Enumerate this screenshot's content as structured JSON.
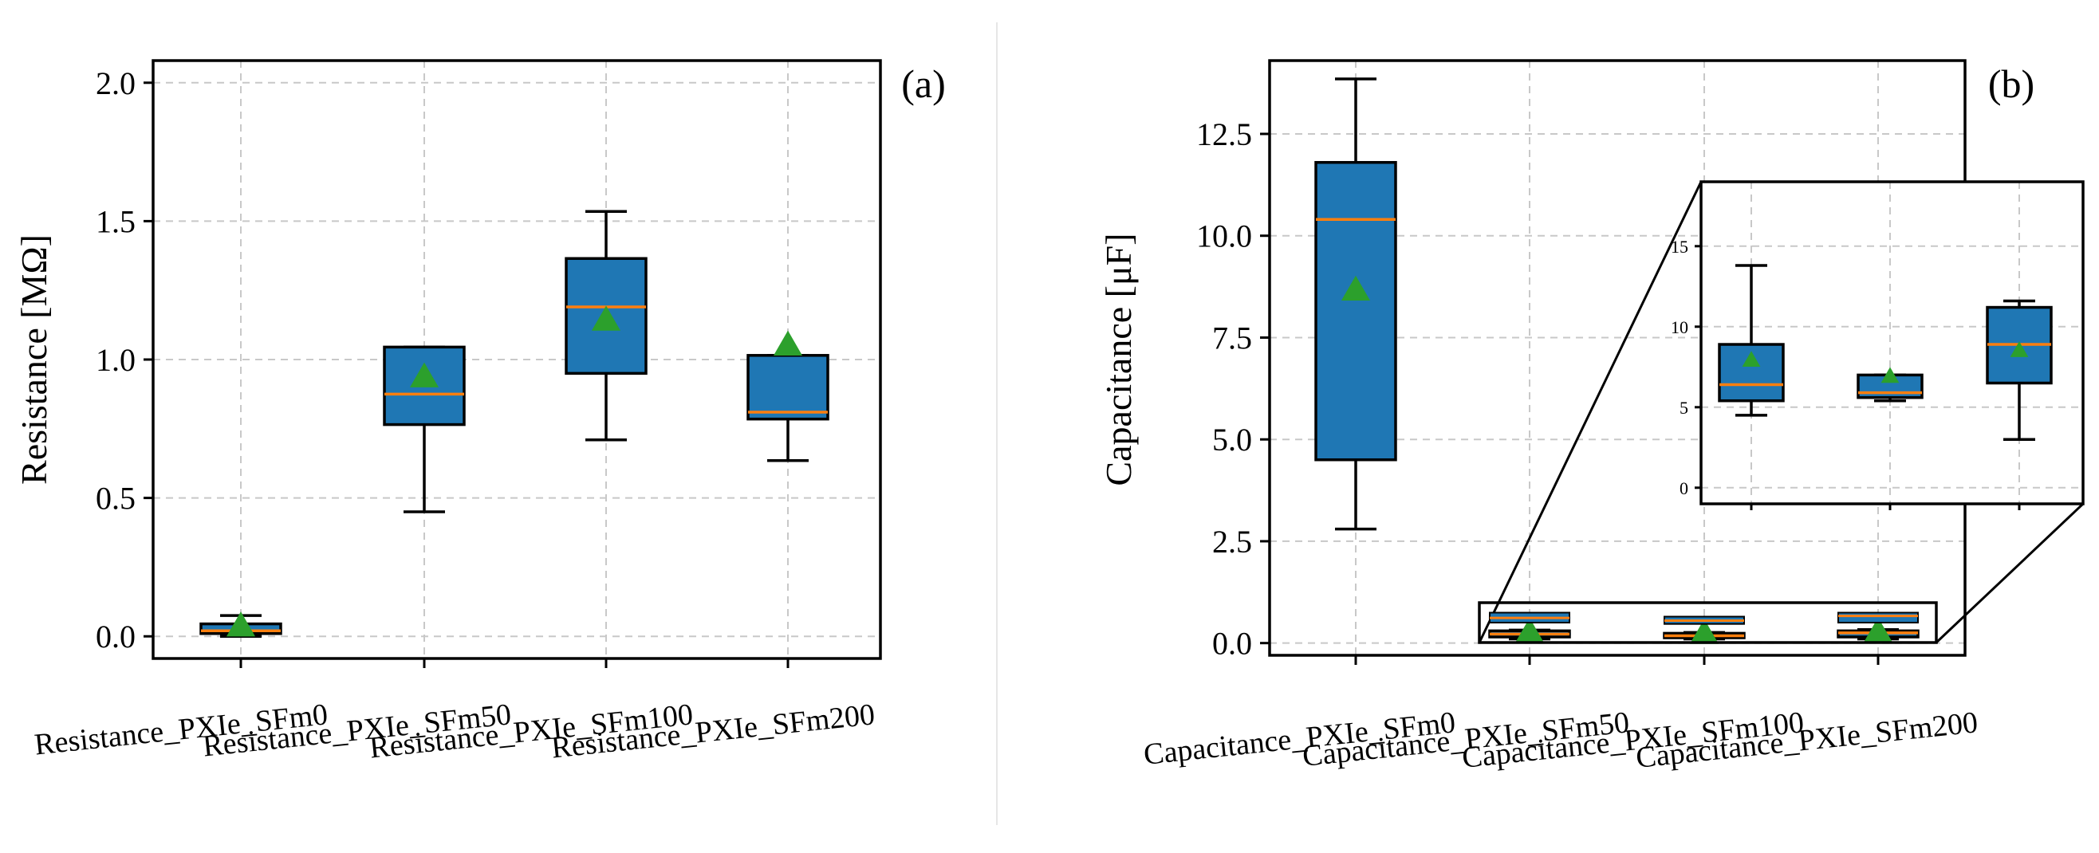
{
  "colors": {
    "box_fill": "#1f77b4",
    "median": "#ff7f0e",
    "mean_marker": "#2ca02c",
    "grid": "#c8c8c8"
  },
  "chart_data": [
    {
      "id": "a",
      "type": "box",
      "panel_label": "(a)",
      "ylabel": "Resistance [MΩ]",
      "ylim": [
        -0.08,
        2.08
      ],
      "yticks": [
        0.0,
        0.5,
        1.0,
        1.5,
        2.0
      ],
      "ytick_labels": [
        "0.0",
        "0.5",
        "1.0",
        "1.5",
        "2.0"
      ],
      "grid": true,
      "categories": [
        "Resistance_PXIe_SFm0",
        "Resistance_PXIe_SFm50",
        "Resistance_PXIe_SFm100",
        "Resistance_PXIe_SFm200"
      ],
      "boxes": [
        {
          "whisker_low": 0.0,
          "q1": 0.01,
          "median": 0.02,
          "q3": 0.045,
          "whisker_high": 0.075,
          "mean": 0.035
        },
        {
          "whisker_low": 0.45,
          "q1": 0.765,
          "median": 0.875,
          "q3": 1.045,
          "whisker_high": 1.045,
          "mean": 0.935
        },
        {
          "whisker_low": 0.71,
          "q1": 0.95,
          "median": 1.19,
          "q3": 1.365,
          "whisker_high": 1.535,
          "mean": 1.14
        },
        {
          "whisker_low": 0.635,
          "q1": 0.785,
          "median": 0.81,
          "q3": 1.015,
          "whisker_high": 1.015,
          "mean": 1.05
        }
      ]
    },
    {
      "id": "b",
      "type": "box",
      "panel_label": "(b)",
      "ylabel": "Capacitance [μF]",
      "ylim": [
        -0.3,
        14.3
      ],
      "yticks": [
        0.0,
        2.5,
        5.0,
        7.5,
        10.0,
        12.5
      ],
      "ytick_labels": [
        "0.0",
        "2.5",
        "5.0",
        "7.5",
        "10.0",
        "12.5"
      ],
      "grid": true,
      "categories": [
        "Capacitance_PXIe_SFm0",
        "Capacitance_PXIe_SFm50",
        "Capacitance_PXIe_SFm100",
        "Capacitance_PXIe_SFm200"
      ],
      "boxes": [
        {
          "whisker_low": 2.8,
          "q1": 4.5,
          "median": 10.4,
          "q3": 11.8,
          "whisker_high": 13.85,
          "mean": 8.65
        },
        {
          "whisker_low": 0.1,
          "q1": 0.15,
          "median": 0.22,
          "q3": 0.3,
          "whisker_high": 0.32,
          "mean": 0.25
        },
        {
          "whisker_low": 0.1,
          "q1": 0.13,
          "median": 0.18,
          "q3": 0.24,
          "whisker_high": 0.26,
          "mean": 0.22
        },
        {
          "whisker_low": 0.1,
          "q1": 0.15,
          "median": 0.25,
          "q3": 0.3,
          "whisker_high": 0.33,
          "mean": 0.26
        }
      ],
      "inset": {
        "source_categories": [
          "Capacitance_PXIe_SFm50",
          "Capacitance_PXIe_SFm100",
          "Capacitance_PXIe_SFm200"
        ],
        "source_ylim": [
          -0.15,
          0.45
        ],
        "ylim": [
          -1,
          19
        ],
        "yticks": [
          0,
          5,
          10,
          15
        ],
        "ytick_labels": [
          "0",
          "5",
          "10",
          "15"
        ],
        "grid": true,
        "boxes": [
          {
            "whisker_low": 4.5,
            "q1": 5.4,
            "median": 6.4,
            "q3": 8.9,
            "whisker_high": 13.8,
            "mean": 7.9
          },
          {
            "whisker_low": 5.4,
            "q1": 5.6,
            "median": 5.9,
            "q3": 7.0,
            "whisker_high": 7.0,
            "mean": 6.9
          },
          {
            "whisker_low": 3.0,
            "q1": 6.5,
            "median": 8.9,
            "q3": 11.2,
            "whisker_high": 11.6,
            "mean": 8.5
          }
        ]
      }
    }
  ]
}
